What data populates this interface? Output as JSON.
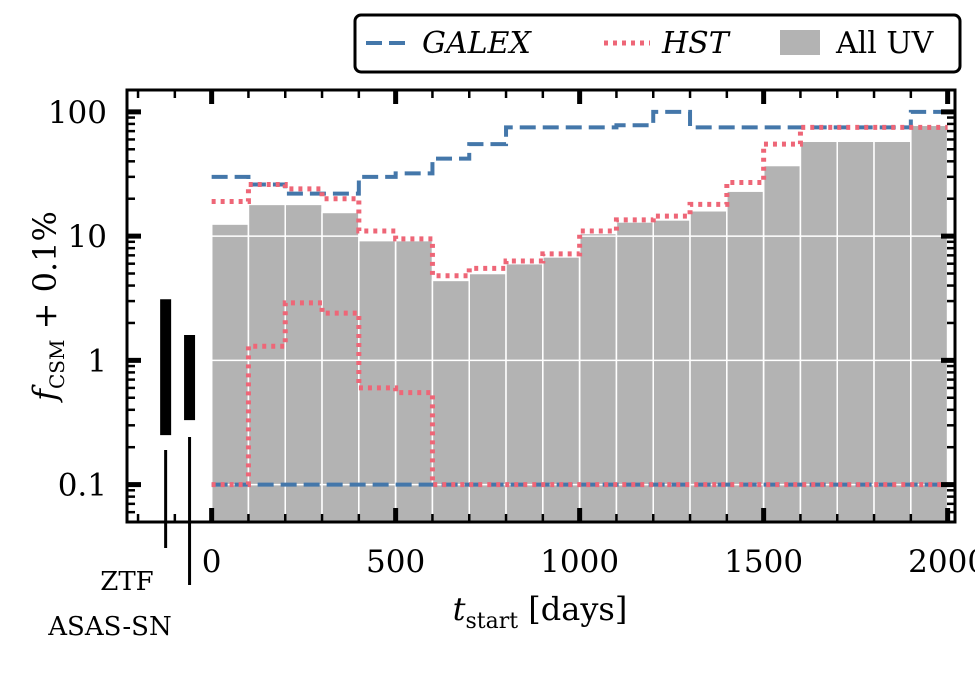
{
  "chart_data": {
    "type": "bar",
    "xlabel": "t_start [days]",
    "xlabel_main": "t",
    "xlabel_sub": "start",
    "xlabel_rest": " [days]",
    "ylabel": "f_CSM + 0.1%",
    "ylabel_main": "f",
    "ylabel_sub": "CSM",
    "ylabel_rest": " + 0.1%",
    "y_scale": "log",
    "xlim": [
      -230,
      2020
    ],
    "ylim": [
      0.05,
      150
    ],
    "x_ticks": [
      0,
      500,
      1000,
      1500,
      2000
    ],
    "x_tick_labels": [
      "0",
      "500",
      "1000",
      "1500",
      "2000"
    ],
    "y_ticks": [
      0.1,
      1,
      10,
      100
    ],
    "y_tick_labels": [
      "0.1",
      "1",
      "10",
      "100"
    ],
    "grid": true,
    "legend_position": "top (above plot, outside)",
    "bin_edges": [
      0,
      100,
      200,
      300,
      400,
      500,
      600,
      700,
      800,
      900,
      1000,
      1100,
      1200,
      1300,
      1400,
      1500,
      1600,
      1700,
      1800,
      1900,
      2000
    ],
    "series": [
      {
        "name": "All UV",
        "style": "bar",
        "color": "#b3b3b3",
        "values": [
          12.5,
          18,
          18,
          15.5,
          9.2,
          9.2,
          4.4,
          5.0,
          6.0,
          6.8,
          10.5,
          13,
          13.5,
          16,
          23,
          37,
          58,
          58,
          58,
          78
        ]
      },
      {
        "name": "GALEX",
        "style": "dashed",
        "color": "#4477aa",
        "upper": [
          30,
          26,
          22,
          22,
          30,
          32,
          42,
          55,
          75,
          75,
          75,
          78,
          100,
          75,
          75,
          75,
          75,
          75,
          75,
          100
        ],
        "lower": [
          0.1,
          0.1,
          0.1,
          0.1,
          0.1,
          0.1,
          0.1,
          0.1,
          0.1,
          0.1,
          0.1,
          0.1,
          0.1,
          0.1,
          0.1,
          0.1,
          0.1,
          0.1,
          0.1,
          0.1
        ]
      },
      {
        "name": "HST",
        "style": "dotted",
        "color": "#ee6677",
        "upper": [
          19,
          26,
          24,
          20,
          11,
          9.5,
          4.8,
          5.5,
          6.3,
          7.2,
          11,
          13.5,
          14.5,
          18,
          27,
          55,
          75,
          75,
          75,
          75
        ],
        "lower": [
          0.1,
          1.3,
          2.9,
          2.4,
          0.6,
          0.55,
          0.1,
          0.1,
          0.1,
          0.1,
          0.1,
          0.1,
          0.1,
          0.1,
          0.1,
          0.1,
          0.1,
          0.1,
          0.1,
          0.1
        ]
      }
    ],
    "side_limits": [
      {
        "name": "ZTF",
        "x": -125,
        "y_low": 0.25,
        "y_high": 3.1
      },
      {
        "name": "ASAS-SN",
        "x": -60,
        "y_low": 0.33,
        "y_high": 1.6
      }
    ]
  },
  "legend": {
    "galex_label": "GALEX",
    "hst_label": "HST",
    "alluv_label": "All UV"
  },
  "side_labels": {
    "ztf": "ZTF",
    "asassn": "ASAS-SN"
  },
  "colors": {
    "galex": "#4477aa",
    "hst": "#ee6677",
    "alluv": "#b3b3b3"
  }
}
